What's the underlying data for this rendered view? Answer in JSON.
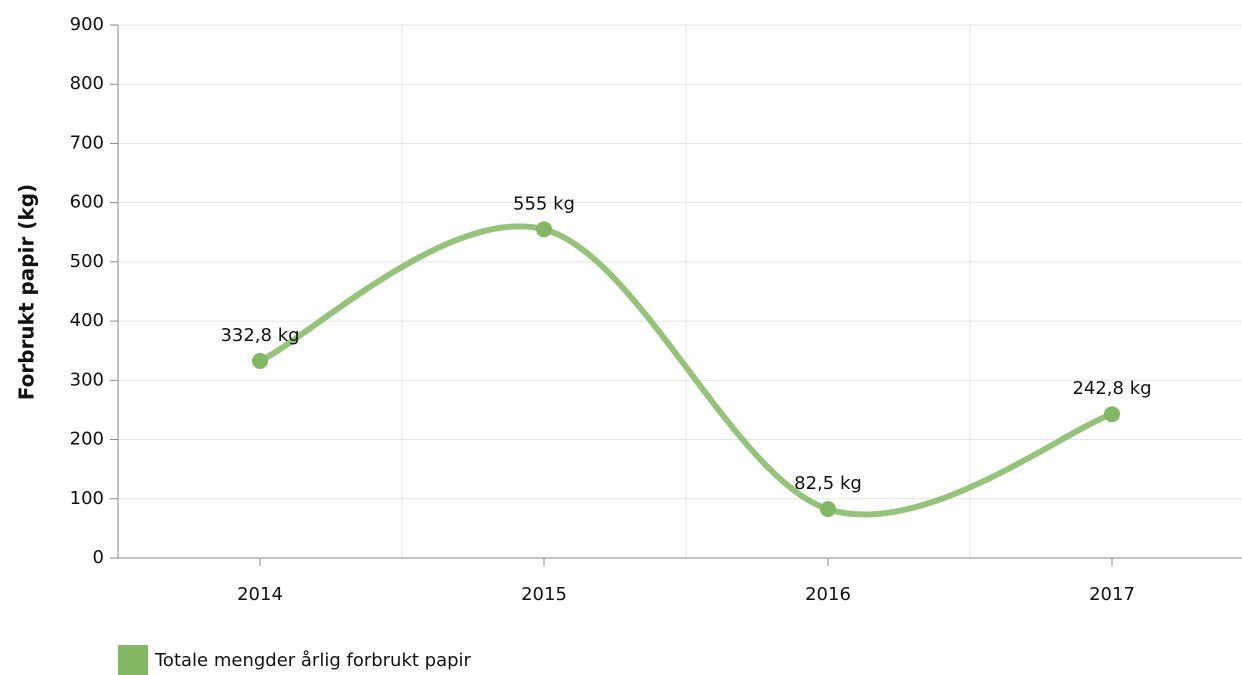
{
  "chart_data": {
    "type": "line",
    "y_label": "Forbrukt papir (kg)",
    "categories": [
      "2014",
      "2015",
      "2016",
      "2017"
    ],
    "series": [
      {
        "name": "Totale mengder årlig forbrukt papir",
        "color": "#82b863",
        "values": [
          332.8,
          555,
          82.5,
          242.8
        ],
        "value_labels": [
          "332,8 kg",
          "555 kg",
          "82,5 kg",
          "242,8 kg"
        ]
      }
    ],
    "ylim": [
      0,
      900
    ],
    "yticks": [
      0,
      100,
      200,
      300,
      400,
      500,
      600,
      700,
      800,
      900
    ],
    "grid": true,
    "smooth": true,
    "legend": "bottom-left"
  }
}
